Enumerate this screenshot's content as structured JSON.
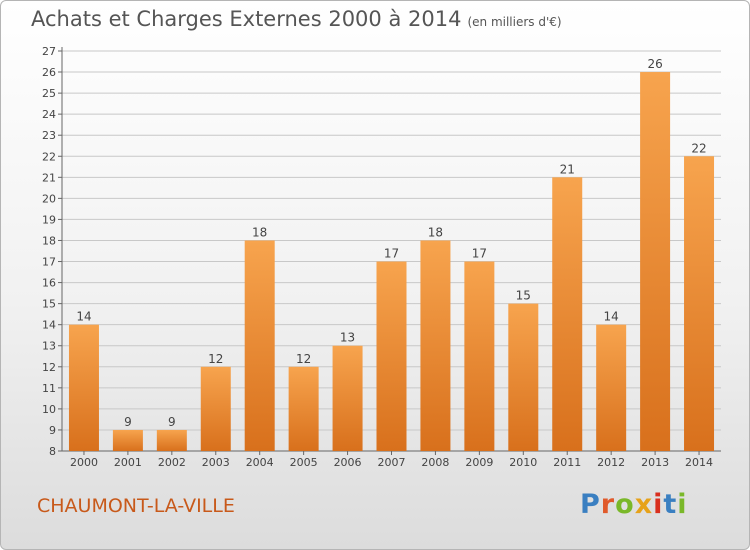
{
  "header": {
    "title": "Achats et Charges Externes 2000 à 2014",
    "unit": "(en milliers d'€)"
  },
  "footer": {
    "commune": "CHAUMONT-LA-VILLE",
    "logo_text": "Proxiti",
    "logo_colors": [
      "#3a7fc1",
      "#e05a2b",
      "#7ab829",
      "#e6a21a",
      "#d9301f",
      "#3a7fc1",
      "#7ab829"
    ]
  },
  "colors": {
    "bar_top": "#f7a44e",
    "bar_bottom": "#d8701c",
    "grid": "#c8c8c8",
    "commune": "#c8591a"
  },
  "chart_data": {
    "type": "bar",
    "title": "Achats et Charges Externes 2000 à 2014",
    "subtitle": "(en milliers d'€)",
    "categories": [
      "2000",
      "2001",
      "2002",
      "2003",
      "2004",
      "2005",
      "2006",
      "2007",
      "2008",
      "2009",
      "2010",
      "2011",
      "2012",
      "2013",
      "2014"
    ],
    "values": [
      14,
      9,
      9,
      12,
      18,
      12,
      13,
      17,
      18,
      17,
      15,
      21,
      14,
      26,
      22
    ],
    "ylim": [
      8,
      27
    ],
    "yticks": [
      8,
      9,
      10,
      11,
      12,
      13,
      14,
      15,
      16,
      17,
      18,
      19,
      20,
      21,
      22,
      23,
      24,
      25,
      26,
      27
    ],
    "grid": true,
    "data_labels": true
  }
}
